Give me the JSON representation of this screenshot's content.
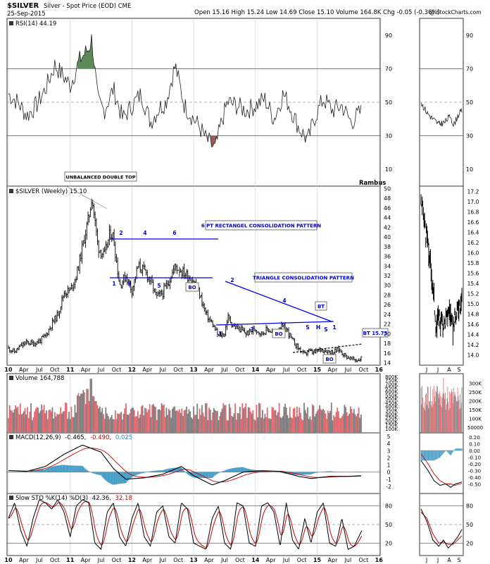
{
  "header": {
    "symbol": "$SILVER",
    "title_rest": "Silver - Spot Price (EOD)  CME",
    "date": "25-Sep-2015",
    "ohlc": "Open 15.16  High 15.24  Low 14.69  Close 15.10  Volume 164.8K  Chg -0.05 (-0.36%)",
    "copyright": "@ StockCharts.com",
    "author": "Rambus"
  },
  "colors": {
    "price": "#000000",
    "annotation_line": "#0000ee",
    "annotation_text": "#0000cc",
    "volume_up": "#e06a72",
    "volume_down": "#808080",
    "macd_hist": "#4a9fc8",
    "signal": "#cc0000",
    "rsi_overbought_fill": "#5e8a5a",
    "rsi_oversold_fill": "#9a5c5c"
  },
  "x_axis": {
    "main": [
      "10",
      "Apr",
      "Jul",
      "Oct",
      "11",
      "Apr",
      "Jul",
      "Oct",
      "12",
      "Apr",
      "Jul",
      "Oct",
      "13",
      "Apr",
      "Jul",
      "Oct",
      "14",
      "Apr",
      "Jul",
      "Oct",
      "15",
      "Apr",
      "Jul",
      "Oct",
      "16"
    ],
    "side": [
      "J",
      "J",
      "A",
      "S"
    ]
  },
  "chart_data": [
    {
      "type": "line",
      "panel": "rsi",
      "legend": "RSI(14) 44.19",
      "ylim": [
        0,
        100
      ],
      "y_ticks": [
        10,
        30,
        50,
        70,
        90
      ],
      "reference_lines": [
        30,
        50,
        70
      ],
      "series": [
        {
          "name": "RSI(14)",
          "x": [
            2010.0,
            2010.15,
            2010.3,
            2010.45,
            2010.6,
            2010.75,
            2010.9,
            2011.0,
            2011.15,
            2011.3,
            2011.35,
            2011.45,
            2011.55,
            2011.7,
            2011.85,
            2012.0,
            2012.15,
            2012.3,
            2012.45,
            2012.55,
            2012.7,
            2012.85,
            2013.0,
            2013.1,
            2013.2,
            2013.35,
            2013.45,
            2013.55,
            2013.7,
            2013.85,
            2014.0,
            2014.15,
            2014.3,
            2014.45,
            2014.55,
            2014.7,
            2014.85,
            2014.95,
            2015.1,
            2015.25,
            2015.4,
            2015.55,
            2015.7
          ],
          "values": [
            55,
            50,
            42,
            48,
            58,
            72,
            65,
            60,
            75,
            82,
            88,
            50,
            45,
            58,
            40,
            48,
            55,
            38,
            47,
            50,
            72,
            48,
            40,
            35,
            28,
            22,
            38,
            50,
            48,
            45,
            48,
            52,
            40,
            55,
            48,
            35,
            27,
            40,
            52,
            45,
            48,
            38,
            44
          ]
        }
      ]
    },
    {
      "type": "line",
      "panel": "price",
      "title": "$SILVER (Weekly) 15.10",
      "ylim": [
        13.5,
        50.5
      ],
      "y_ticks": [
        14,
        16,
        18,
        20,
        22,
        24,
        26,
        28,
        30,
        32,
        34,
        36,
        38,
        40,
        42,
        44,
        46,
        48,
        50
      ],
      "side_ylim": [
        13.8,
        17.3
      ],
      "side_y_ticks": [
        14.0,
        14.2,
        14.4,
        14.6,
        14.8,
        15.0,
        15.2,
        15.4,
        15.6,
        15.8,
        16.0,
        16.2,
        16.4,
        16.6,
        16.8,
        17.0,
        17.2
      ],
      "series": [
        {
          "name": "$SILVER",
          "x": [
            2010.0,
            2010.1,
            2010.2,
            2010.3,
            2010.4,
            2010.5,
            2010.6,
            2010.7,
            2010.8,
            2010.9,
            2011.0,
            2011.1,
            2011.2,
            2011.3,
            2011.35,
            2011.45,
            2011.55,
            2011.65,
            2011.7,
            2011.8,
            2011.9,
            2012.0,
            2012.1,
            2012.2,
            2012.3,
            2012.4,
            2012.5,
            2012.6,
            2012.7,
            2012.8,
            2012.9,
            2013.0,
            2013.1,
            2013.2,
            2013.3,
            2013.4,
            2013.5,
            2013.55,
            2013.65,
            2013.75,
            2013.85,
            2014.0,
            2014.1,
            2014.2,
            2014.3,
            2014.4,
            2014.5,
            2014.6,
            2014.7,
            2014.8,
            2014.85,
            2014.95,
            2015.05,
            2015.15,
            2015.25,
            2015.35,
            2015.45,
            2015.55,
            2015.65,
            2015.73
          ],
          "values": [
            17.0,
            16.2,
            17.5,
            18.2,
            18.0,
            18.5,
            19.5,
            22,
            24,
            28.5,
            29,
            32,
            38,
            44,
            48.5,
            38,
            36,
            41,
            40,
            30,
            32,
            29,
            34,
            33,
            31,
            27.5,
            28.5,
            31,
            34,
            33,
            32,
            31,
            28,
            24,
            22,
            19.5,
            20,
            23.5,
            21.5,
            21,
            20,
            21,
            20,
            21,
            20,
            21.5,
            21,
            18.5,
            17,
            15.5,
            16.5,
            16,
            16.8,
            16.5,
            16.2,
            16.8,
            15.5,
            14.8,
            14.5,
            15.1
          ]
        }
      ],
      "annotations": [
        "UNBALANCED DOUBLE TOP",
        "6 PT RECTANGEL CONSOLIDATION PATTERN",
        "TRIANGLE CONSOLIDATION PATTERN",
        "BO",
        "BO",
        "BO",
        "BT",
        "BT 15.75",
        "1",
        "2",
        "3",
        "4",
        "5",
        "6",
        "1",
        "2",
        "3",
        "4",
        "S",
        "H",
        "S",
        "1"
      ]
    },
    {
      "type": "bar",
      "panel": "volume",
      "legend": "Volume 164,788",
      "y_ticks": [
        "100K",
        "150K",
        "200K",
        "250K",
        "300K",
        "350K",
        "400K",
        "450K",
        "500K",
        "550K",
        "600K",
        "650K",
        "700K",
        "750K",
        "800K"
      ],
      "side_y_ticks": [
        "50000",
        "100K",
        "150K",
        "200K",
        "250K",
        "300K"
      ]
    },
    {
      "type": "line",
      "panel": "macd",
      "legend_prefix": "MACD(12,26,9)",
      "legend_macd": "-0.465",
      "legend_signal": "-0.490",
      "legend_hist": "0.025",
      "ylim": [
        -3,
        5.5
      ],
      "y_ticks": [
        "-2",
        "-1",
        "0",
        "1",
        "2",
        "3",
        "4",
        "5"
      ],
      "side_y_ticks": [
        "0.20",
        "0.10",
        "0.00",
        "-0.10",
        "-0.20",
        "-0.30",
        "-0.40",
        "-0.50"
      ],
      "series": [
        {
          "name": "MACD",
          "x": [
            2010.0,
            2010.3,
            2010.6,
            2010.9,
            2011.2,
            2011.5,
            2011.7,
            2011.9,
            2012.2,
            2012.5,
            2012.8,
            2013.0,
            2013.3,
            2013.5,
            2013.8,
            2014.1,
            2014.4,
            2014.7,
            2014.9,
            2015.2,
            2015.5,
            2015.73
          ],
          "values": [
            0.2,
            0.1,
            0.8,
            2.5,
            3.8,
            2.8,
            0.5,
            -1.0,
            -0.8,
            -0.3,
            0.8,
            -0.5,
            -1.8,
            -1.2,
            0.0,
            0.2,
            0.1,
            -0.6,
            -0.9,
            -0.6,
            -0.6,
            -0.5
          ]
        }
      ]
    },
    {
      "type": "line",
      "panel": "stochastic",
      "legend_prefix": "Slow STO %K(14) %D(3)",
      "legend_k": "42.36",
      "legend_d": "32.18",
      "ylim": [
        0,
        100
      ],
      "y_ticks": [
        "20",
        "50",
        "80"
      ],
      "reference_lines": [
        20,
        50,
        80
      ],
      "series": [
        {
          "name": "%K",
          "x": [
            2010.0,
            2010.1,
            2010.2,
            2010.3,
            2010.4,
            2010.5,
            2010.6,
            2010.7,
            2010.8,
            2010.9,
            2011.0,
            2011.1,
            2011.2,
            2011.3,
            2011.4,
            2011.5,
            2011.6,
            2011.7,
            2011.8,
            2011.9,
            2012.0,
            2012.1,
            2012.2,
            2012.3,
            2012.4,
            2012.5,
            2012.6,
            2012.7,
            2012.8,
            2012.9,
            2013.0,
            2013.1,
            2013.2,
            2013.3,
            2013.4,
            2013.5,
            2013.6,
            2013.7,
            2013.8,
            2013.9,
            2014.0,
            2014.1,
            2014.2,
            2014.3,
            2014.4,
            2014.5,
            2014.6,
            2014.7,
            2014.8,
            2014.9,
            2015.0,
            2015.1,
            2015.2,
            2015.3,
            2015.4,
            2015.5,
            2015.6,
            2015.73
          ],
          "values": [
            60,
            85,
            40,
            15,
            60,
            90,
            85,
            75,
            90,
            70,
            30,
            80,
            90,
            85,
            20,
            10,
            70,
            85,
            30,
            15,
            60,
            85,
            30,
            15,
            70,
            80,
            30,
            20,
            85,
            75,
            20,
            15,
            10,
            60,
            80,
            20,
            10,
            85,
            80,
            20,
            15,
            80,
            85,
            70,
            15,
            85,
            25,
            10,
            60,
            20,
            70,
            85,
            20,
            15,
            60,
            10,
            15,
            42
          ]
        }
      ]
    }
  ]
}
